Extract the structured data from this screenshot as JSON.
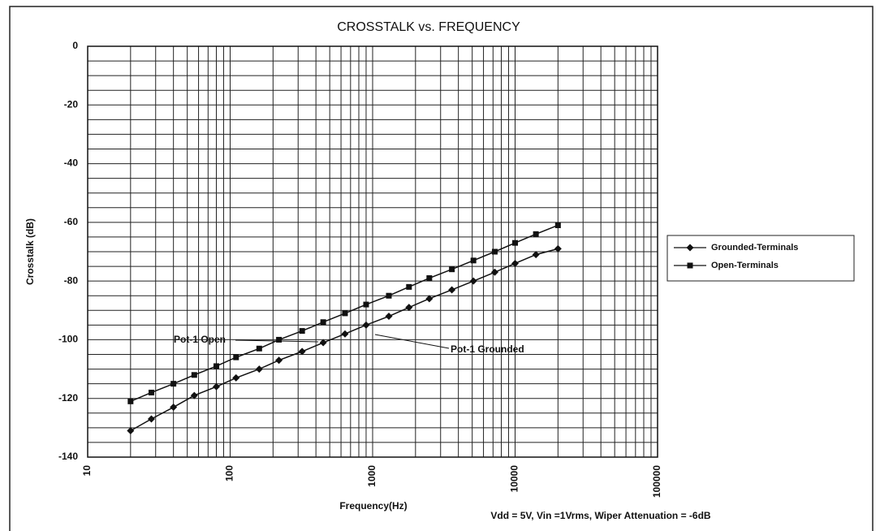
{
  "chart_data": {
    "type": "line",
    "title": "CROSSTALK vs. FREQUENCY",
    "x_label": "Frequency(Hz)",
    "y_label": "Crosstalk (dB)",
    "x": [
      20,
      28,
      40,
      56,
      80,
      110,
      160,
      220,
      320,
      450,
      640,
      900,
      1300,
      1800,
      2500,
      3600,
      5100,
      7200,
      10000,
      14000,
      20000
    ],
    "series": [
      {
        "name": "Grounded-Terminals",
        "color": "#111111",
        "marker": "diamond",
        "values": [
          -131,
          -127,
          -123,
          -119,
          -116,
          -113,
          -110,
          -107,
          -104,
          -101,
          -98,
          -95,
          -92,
          -89,
          -86,
          -83,
          -80,
          -77,
          -74,
          -71,
          -69
        ]
      },
      {
        "name": "Open-Terminals",
        "color": "#111111",
        "marker": "square",
        "values": [
          -121,
          -118,
          -115,
          -112,
          -109,
          -106,
          -103,
          -100,
          -97,
          -94,
          -91,
          -88,
          -85,
          -82,
          -79,
          -76,
          -73,
          -70,
          -67,
          -64,
          -61
        ]
      }
    ],
    "xlim": [
      10,
      100000
    ],
    "xticks": [
      10,
      100,
      1000,
      10000,
      100000
    ],
    "xscale": "log",
    "ylim": [
      -140,
      0
    ],
    "yticks": [
      -140,
      -120,
      -100,
      -80,
      -60,
      -40,
      -20,
      0
    ],
    "grid": true,
    "legend": "right",
    "annotations": [
      "Pot-1 Open",
      "Pot-1 Grounded"
    ],
    "note": "Vdd = 5V, Vin =1Vrms, Wiper Attenuation = -6dB"
  }
}
